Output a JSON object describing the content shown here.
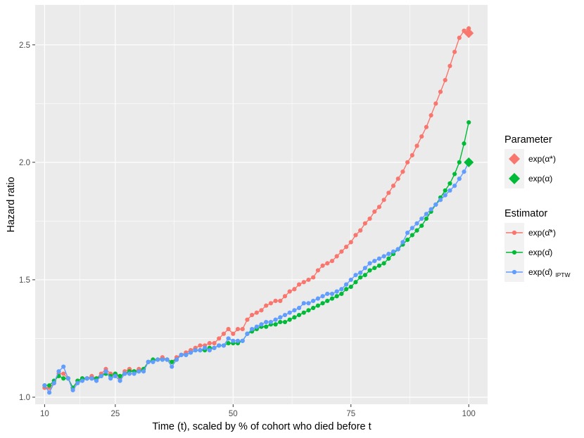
{
  "chart_data": {
    "type": "line",
    "xlabel": "Time (t), scaled by % of cohort who died before t",
    "ylabel": "Hazard ratio",
    "xlim": [
      8,
      104
    ],
    "ylim": [
      0.97,
      2.67
    ],
    "x_ticks": [
      10,
      25,
      50,
      75,
      100
    ],
    "x_tick_labels": [
      "10",
      "25",
      "50",
      "75",
      "100"
    ],
    "y_ticks": [
      1.0,
      1.5,
      2.0,
      2.5
    ],
    "y_tick_labels": [
      "1.0",
      "1.5",
      "2.0",
      "2.5"
    ],
    "grid": true,
    "legend_position": "right",
    "parameter_legend": {
      "title": "Parameter",
      "items": [
        {
          "label": "exp(α*)",
          "color": "#F8766D"
        },
        {
          "label": "exp(α)",
          "color": "#00BA38"
        }
      ]
    },
    "estimator_legend": {
      "title": "Estimator",
      "items": [
        {
          "label": "exp(α̂*)",
          "color": "#F8766D"
        },
        {
          "label": "exp(α̂)",
          "color": "#00BA38"
        },
        {
          "label": "exp(α̂)",
          "subscript": "IPTW",
          "color": "#619CFF"
        }
      ]
    },
    "parameters": [
      {
        "label": "exp(α*)",
        "x": 100,
        "y": 2.55,
        "color": "#F8766D"
      },
      {
        "label": "exp(α)",
        "x": 100,
        "y": 2.0,
        "color": "#00BA38"
      }
    ],
    "series": [
      {
        "label": "exp(α̂*)",
        "color": "#F8766D",
        "points": [
          [
            10,
            1.04
          ],
          [
            11,
            1.04
          ],
          [
            12,
            1.06
          ],
          [
            13,
            1.1
          ],
          [
            14,
            1.1
          ],
          [
            15,
            1.08
          ],
          [
            16,
            1.04
          ],
          [
            17,
            1.07
          ],
          [
            18,
            1.08
          ],
          [
            19,
            1.08
          ],
          [
            20,
            1.09
          ],
          [
            21,
            1.08
          ],
          [
            22,
            1.1
          ],
          [
            23,
            1.12
          ],
          [
            24,
            1.1
          ],
          [
            25,
            1.1
          ],
          [
            26,
            1.08
          ],
          [
            27,
            1.11
          ],
          [
            28,
            1.12
          ],
          [
            29,
            1.11
          ],
          [
            30,
            1.12
          ],
          [
            31,
            1.12
          ],
          [
            32,
            1.15
          ],
          [
            33,
            1.16
          ],
          [
            34,
            1.16
          ],
          [
            35,
            1.17
          ],
          [
            36,
            1.16
          ],
          [
            37,
            1.15
          ],
          [
            38,
            1.17
          ],
          [
            39,
            1.18
          ],
          [
            40,
            1.19
          ],
          [
            41,
            1.2
          ],
          [
            42,
            1.21
          ],
          [
            43,
            1.22
          ],
          [
            44,
            1.22
          ],
          [
            45,
            1.23
          ],
          [
            46,
            1.23
          ],
          [
            47,
            1.25
          ],
          [
            48,
            1.27
          ],
          [
            49,
            1.29
          ],
          [
            50,
            1.27
          ],
          [
            51,
            1.29
          ],
          [
            52,
            1.29
          ],
          [
            53,
            1.33
          ],
          [
            54,
            1.35
          ],
          [
            55,
            1.36
          ],
          [
            56,
            1.37
          ],
          [
            57,
            1.39
          ],
          [
            58,
            1.4
          ],
          [
            59,
            1.41
          ],
          [
            60,
            1.41
          ],
          [
            61,
            1.43
          ],
          [
            62,
            1.45
          ],
          [
            63,
            1.46
          ],
          [
            64,
            1.48
          ],
          [
            65,
            1.49
          ],
          [
            66,
            1.5
          ],
          [
            67,
            1.51
          ],
          [
            68,
            1.54
          ],
          [
            69,
            1.56
          ],
          [
            70,
            1.57
          ],
          [
            71,
            1.58
          ],
          [
            72,
            1.6
          ],
          [
            73,
            1.62
          ],
          [
            74,
            1.64
          ],
          [
            75,
            1.66
          ],
          [
            76,
            1.69
          ],
          [
            77,
            1.71
          ],
          [
            78,
            1.74
          ],
          [
            79,
            1.76
          ],
          [
            80,
            1.79
          ],
          [
            81,
            1.81
          ],
          [
            82,
            1.84
          ],
          [
            83,
            1.87
          ],
          [
            84,
            1.9
          ],
          [
            85,
            1.93
          ],
          [
            86,
            1.96
          ],
          [
            87,
            2.0
          ],
          [
            88,
            2.03
          ],
          [
            89,
            2.07
          ],
          [
            90,
            2.11
          ],
          [
            91,
            2.15
          ],
          [
            92,
            2.2
          ],
          [
            93,
            2.25
          ],
          [
            94,
            2.3
          ],
          [
            95,
            2.35
          ],
          [
            96,
            2.41
          ],
          [
            97,
            2.47
          ],
          [
            98,
            2.53
          ],
          [
            99,
            2.56
          ],
          [
            100,
            2.57
          ]
        ]
      },
      {
        "label": "exp(α̂)",
        "color": "#00BA38",
        "points": [
          [
            10,
            1.05
          ],
          [
            11,
            1.05
          ],
          [
            12,
            1.07
          ],
          [
            13,
            1.09
          ],
          [
            14,
            1.08
          ],
          [
            15,
            1.08
          ],
          [
            16,
            1.04
          ],
          [
            17,
            1.07
          ],
          [
            18,
            1.08
          ],
          [
            19,
            1.08
          ],
          [
            20,
            1.08
          ],
          [
            21,
            1.08
          ],
          [
            22,
            1.09
          ],
          [
            23,
            1.1
          ],
          [
            24,
            1.09
          ],
          [
            25,
            1.1
          ],
          [
            26,
            1.09
          ],
          [
            27,
            1.1
          ],
          [
            28,
            1.11
          ],
          [
            29,
            1.11
          ],
          [
            30,
            1.11
          ],
          [
            31,
            1.12
          ],
          [
            32,
            1.15
          ],
          [
            33,
            1.16
          ],
          [
            34,
            1.16
          ],
          [
            35,
            1.16
          ],
          [
            36,
            1.16
          ],
          [
            37,
            1.15
          ],
          [
            38,
            1.16
          ],
          [
            39,
            1.18
          ],
          [
            40,
            1.18
          ],
          [
            41,
            1.19
          ],
          [
            42,
            1.2
          ],
          [
            43,
            1.2
          ],
          [
            44,
            1.2
          ],
          [
            45,
            1.21
          ],
          [
            46,
            1.21
          ],
          [
            47,
            1.22
          ],
          [
            48,
            1.22
          ],
          [
            49,
            1.23
          ],
          [
            50,
            1.23
          ],
          [
            51,
            1.23
          ],
          [
            52,
            1.24
          ],
          [
            53,
            1.27
          ],
          [
            54,
            1.28
          ],
          [
            55,
            1.29
          ],
          [
            56,
            1.3
          ],
          [
            57,
            1.3
          ],
          [
            58,
            1.31
          ],
          [
            59,
            1.31
          ],
          [
            60,
            1.32
          ],
          [
            61,
            1.32
          ],
          [
            62,
            1.33
          ],
          [
            63,
            1.34
          ],
          [
            64,
            1.35
          ],
          [
            65,
            1.36
          ],
          [
            66,
            1.37
          ],
          [
            67,
            1.38
          ],
          [
            68,
            1.39
          ],
          [
            69,
            1.4
          ],
          [
            70,
            1.41
          ],
          [
            71,
            1.42
          ],
          [
            72,
            1.43
          ],
          [
            73,
            1.44
          ],
          [
            74,
            1.46
          ],
          [
            75,
            1.47
          ],
          [
            76,
            1.49
          ],
          [
            77,
            1.51
          ],
          [
            78,
            1.52
          ],
          [
            79,
            1.54
          ],
          [
            80,
            1.55
          ],
          [
            81,
            1.56
          ],
          [
            82,
            1.57
          ],
          [
            83,
            1.59
          ],
          [
            84,
            1.61
          ],
          [
            85,
            1.63
          ],
          [
            86,
            1.65
          ],
          [
            87,
            1.67
          ],
          [
            88,
            1.69
          ],
          [
            89,
            1.71
          ],
          [
            90,
            1.73
          ],
          [
            91,
            1.76
          ],
          [
            92,
            1.79
          ],
          [
            93,
            1.82
          ],
          [
            94,
            1.85
          ],
          [
            95,
            1.88
          ],
          [
            96,
            1.91
          ],
          [
            97,
            1.95
          ],
          [
            98,
            2.0
          ],
          [
            99,
            2.08
          ],
          [
            100,
            2.17
          ]
        ]
      },
      {
        "label": "exp(α̂) IPTW",
        "color": "#619CFF",
        "points": [
          [
            10,
            1.05
          ],
          [
            11,
            1.02
          ],
          [
            12,
            1.06
          ],
          [
            13,
            1.11
          ],
          [
            14,
            1.13
          ],
          [
            15,
            1.08
          ],
          [
            16,
            1.03
          ],
          [
            17,
            1.06
          ],
          [
            18,
            1.07
          ],
          [
            19,
            1.08
          ],
          [
            20,
            1.08
          ],
          [
            21,
            1.07
          ],
          [
            22,
            1.09
          ],
          [
            23,
            1.11
          ],
          [
            24,
            1.08
          ],
          [
            25,
            1.09
          ],
          [
            26,
            1.07
          ],
          [
            27,
            1.1
          ],
          [
            28,
            1.1
          ],
          [
            29,
            1.1
          ],
          [
            30,
            1.11
          ],
          [
            31,
            1.11
          ],
          [
            32,
            1.15
          ],
          [
            33,
            1.15
          ],
          [
            34,
            1.16
          ],
          [
            35,
            1.16
          ],
          [
            36,
            1.16
          ],
          [
            37,
            1.13
          ],
          [
            38,
            1.16
          ],
          [
            39,
            1.18
          ],
          [
            40,
            1.18
          ],
          [
            41,
            1.19
          ],
          [
            42,
            1.2
          ],
          [
            43,
            1.2
          ],
          [
            44,
            1.21
          ],
          [
            45,
            1.2
          ],
          [
            46,
            1.21
          ],
          [
            47,
            1.22
          ],
          [
            48,
            1.22
          ],
          [
            49,
            1.25
          ],
          [
            50,
            1.24
          ],
          [
            51,
            1.24
          ],
          [
            52,
            1.24
          ],
          [
            53,
            1.27
          ],
          [
            54,
            1.29
          ],
          [
            55,
            1.3
          ],
          [
            56,
            1.31
          ],
          [
            57,
            1.32
          ],
          [
            58,
            1.32
          ],
          [
            59,
            1.33
          ],
          [
            60,
            1.34
          ],
          [
            61,
            1.35
          ],
          [
            62,
            1.36
          ],
          [
            63,
            1.37
          ],
          [
            64,
            1.38
          ],
          [
            65,
            1.4
          ],
          [
            66,
            1.4
          ],
          [
            67,
            1.41
          ],
          [
            68,
            1.42
          ],
          [
            69,
            1.43
          ],
          [
            70,
            1.44
          ],
          [
            71,
            1.44
          ],
          [
            72,
            1.45
          ],
          [
            73,
            1.46
          ],
          [
            74,
            1.48
          ],
          [
            75,
            1.5
          ],
          [
            76,
            1.52
          ],
          [
            77,
            1.53
          ],
          [
            78,
            1.55
          ],
          [
            79,
            1.57
          ],
          [
            80,
            1.58
          ],
          [
            81,
            1.59
          ],
          [
            82,
            1.6
          ],
          [
            83,
            1.61
          ],
          [
            84,
            1.62
          ],
          [
            85,
            1.63
          ],
          [
            86,
            1.66
          ],
          [
            87,
            1.7
          ],
          [
            88,
            1.72
          ],
          [
            89,
            1.74
          ],
          [
            90,
            1.76
          ],
          [
            91,
            1.78
          ],
          [
            92,
            1.8
          ],
          [
            93,
            1.82
          ],
          [
            94,
            1.84
          ],
          [
            95,
            1.86
          ],
          [
            96,
            1.88
          ],
          [
            97,
            1.9
          ],
          [
            98,
            1.93
          ],
          [
            99,
            1.96
          ],
          [
            100,
            2.0
          ]
        ]
      }
    ]
  }
}
